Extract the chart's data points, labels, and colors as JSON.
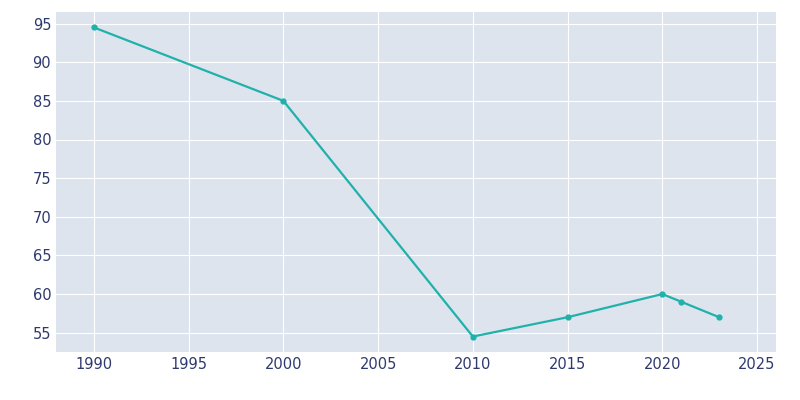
{
  "years": [
    1990,
    2000,
    2010,
    2015,
    2020,
    2021,
    2023
  ],
  "values": [
    94.5,
    85.0,
    54.5,
    57.0,
    60.0,
    59.0,
    57.0
  ],
  "line_color": "#20b2aa",
  "marker": "o",
  "marker_size": 3.5,
  "linewidth": 1.6,
  "fig_bg_color": "#ffffff",
  "axes_bg_color": "#dde4ee",
  "grid_color": "#ffffff",
  "xlim": [
    1988,
    2026
  ],
  "ylim": [
    52.5,
    96.5
  ],
  "xticks": [
    1990,
    1995,
    2000,
    2005,
    2010,
    2015,
    2020,
    2025
  ],
  "yticks": [
    55,
    60,
    65,
    70,
    75,
    80,
    85,
    90,
    95
  ],
  "tick_color": "#2e3a6e",
  "tick_fontsize": 10.5
}
